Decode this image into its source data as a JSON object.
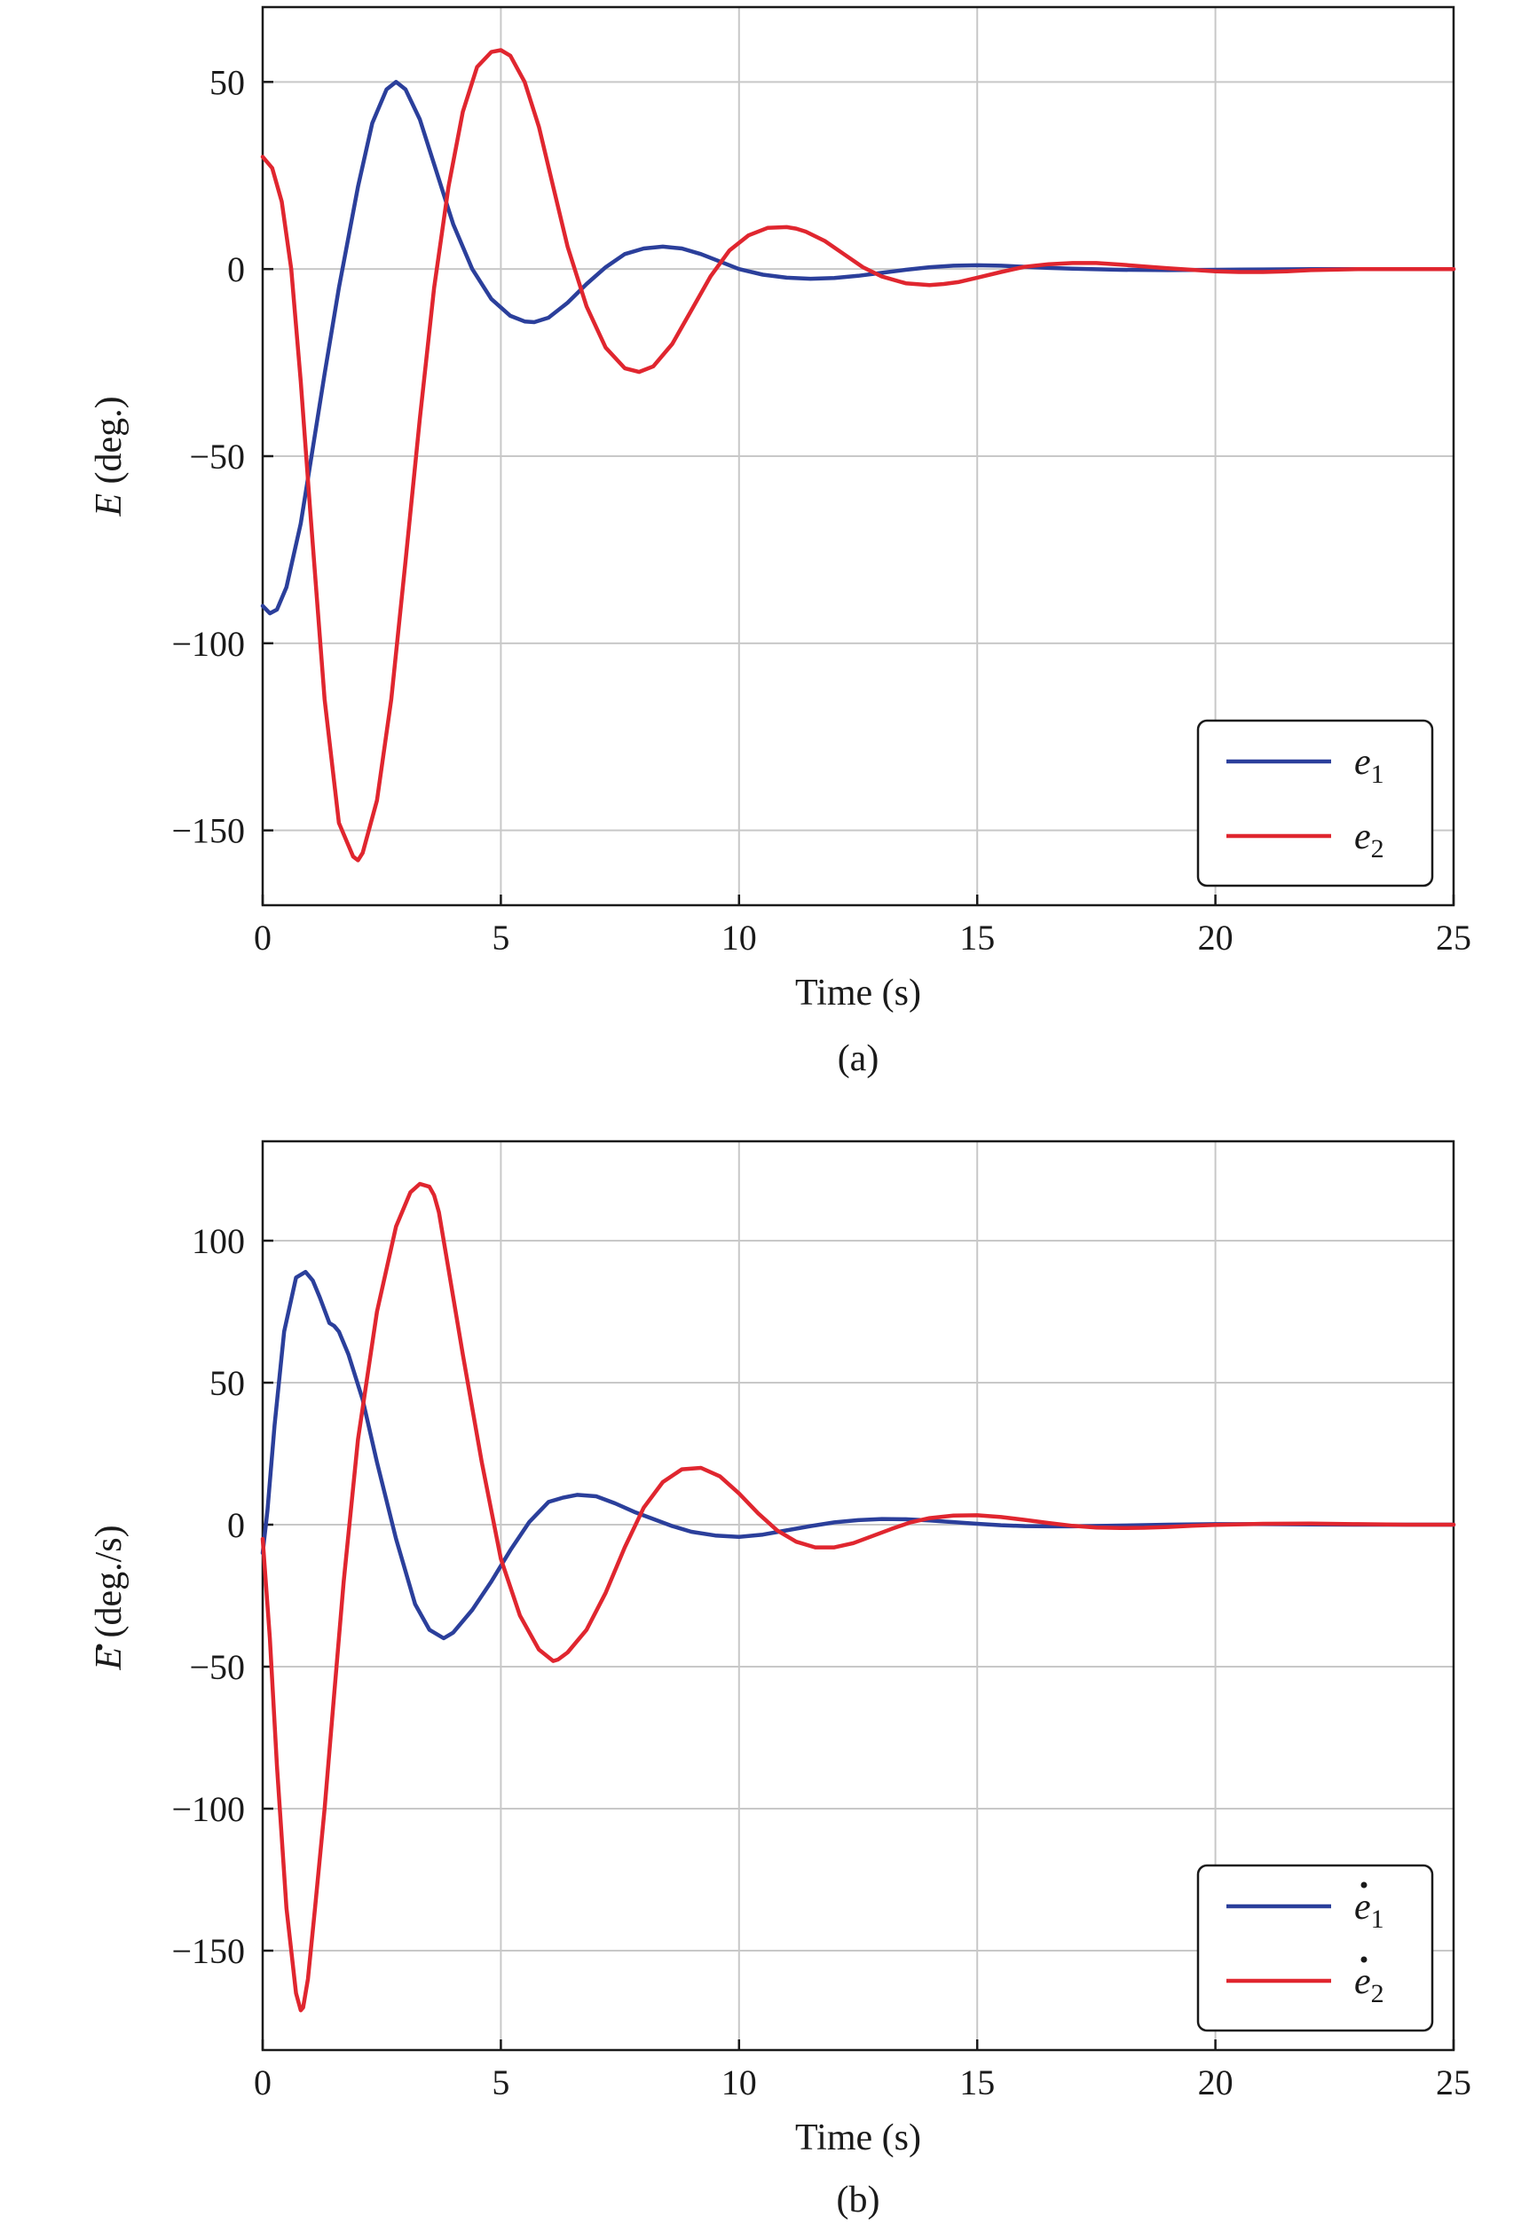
{
  "colors": {
    "blue": "#2b3f9b",
    "red": "#e0262f"
  },
  "chart_data": [
    {
      "id": "a",
      "type": "line",
      "caption": "(a)",
      "xlabel": "Time (s)",
      "ylabel_symbol": "E",
      "ylabel_rest": "(deg.)",
      "ylabel_dot": false,
      "xlim": [
        0,
        25
      ],
      "ylim": [
        -170,
        70
      ],
      "xticks": [
        0,
        5,
        10,
        15,
        20,
        25
      ],
      "xtick_labels": [
        "0",
        "5",
        "10",
        "15",
        "20",
        "25"
      ],
      "yticks": [
        50,
        0,
        -50,
        -100,
        -150
      ],
      "ytick_labels": [
        "50",
        "0",
        "−50",
        "−100",
        "−150"
      ],
      "grid": true,
      "legend_position": "lower-right",
      "series": [
        {
          "name": "e",
          "name_sub": "1",
          "name_dot": false,
          "color": "#2b3f9b",
          "x": [
            0,
            0.15,
            0.3,
            0.5,
            0.8,
            1.0,
            1.3,
            1.6,
            2.0,
            2.3,
            2.6,
            2.8,
            3.0,
            3.3,
            3.6,
            4.0,
            4.4,
            4.8,
            5.2,
            5.5,
            5.7,
            6.0,
            6.4,
            6.8,
            7.2,
            7.6,
            8.0,
            8.4,
            8.8,
            9.2,
            9.6,
            10.0,
            10.5,
            11.0,
            11.5,
            12.0,
            12.5,
            13.0,
            13.5,
            14.0,
            14.5,
            15.0,
            15.5,
            16.0,
            16.5,
            17.0,
            18.0,
            19.0,
            20.0,
            21.0,
            22.0,
            23.0,
            24.0,
            25.0
          ],
          "y": [
            -90,
            -92,
            -91,
            -85,
            -68,
            -52,
            -28,
            -5,
            22,
            39,
            48,
            50,
            48,
            40,
            28,
            12,
            0,
            -8,
            -12.5,
            -14,
            -14.2,
            -13,
            -9,
            -4,
            0.5,
            4,
            5.5,
            6,
            5.5,
            4,
            2,
            0,
            -1.5,
            -2.3,
            -2.6,
            -2.4,
            -1.8,
            -1,
            -0.2,
            0.5,
            0.9,
            1,
            0.9,
            0.6,
            0.3,
            0.1,
            -0.2,
            -0.3,
            -0.2,
            -0.1,
            0,
            0,
            0,
            0
          ]
        },
        {
          "name": "e",
          "name_sub": "2",
          "name_dot": false,
          "color": "#e0262f",
          "x": [
            0,
            0.2,
            0.4,
            0.6,
            0.8,
            1.0,
            1.3,
            1.6,
            1.9,
            2.0,
            2.1,
            2.4,
            2.7,
            3.0,
            3.3,
            3.6,
            3.9,
            4.2,
            4.5,
            4.8,
            5.0,
            5.2,
            5.5,
            5.8,
            6.1,
            6.4,
            6.8,
            7.2,
            7.6,
            7.9,
            8.2,
            8.6,
            9.0,
            9.4,
            9.8,
            10.2,
            10.6,
            11.0,
            11.2,
            11.4,
            11.8,
            12.2,
            12.6,
            13.0,
            13.5,
            14.0,
            14.3,
            14.6,
            15.0,
            15.5,
            16.0,
            16.5,
            17.0,
            17.5,
            18.0,
            18.5,
            19.0,
            19.5,
            20.0,
            20.5,
            21.0,
            21.5,
            22.0,
            23.0,
            24.0,
            25.0
          ],
          "y": [
            30,
            27,
            18,
            0,
            -30,
            -65,
            -115,
            -148,
            -157,
            -158,
            -156,
            -142,
            -115,
            -78,
            -40,
            -5,
            22,
            42,
            54,
            58,
            58.5,
            57,
            50,
            38,
            22,
            6,
            -10,
            -21,
            -26.5,
            -27.5,
            -26,
            -20,
            -11,
            -2,
            5,
            9,
            11,
            11.2,
            10.8,
            10,
            7.5,
            4,
            0.5,
            -2,
            -3.8,
            -4.3,
            -4,
            -3.5,
            -2.3,
            -0.8,
            0.6,
            1.3,
            1.6,
            1.6,
            1.2,
            0.7,
            0.2,
            -0.2,
            -0.6,
            -0.8,
            -0.8,
            -0.6,
            -0.3,
            0,
            0,
            0
          ]
        }
      ]
    },
    {
      "id": "b",
      "type": "line",
      "caption": "(b)",
      "xlabel": "Time (s)",
      "ylabel_symbol": "E",
      "ylabel_rest": "(deg./s)",
      "ylabel_dot": true,
      "xlim": [
        0,
        25
      ],
      "ylim": [
        -185,
        135
      ],
      "xticks": [
        0,
        5,
        10,
        15,
        20,
        25
      ],
      "xtick_labels": [
        "0",
        "5",
        "10",
        "15",
        "20",
        "25"
      ],
      "yticks": [
        100,
        50,
        0,
        -50,
        -100,
        -150
      ],
      "ytick_labels": [
        "100",
        "50",
        "0",
        "−50",
        "−100",
        "−150"
      ],
      "grid": true,
      "legend_position": "lower-right",
      "series": [
        {
          "name": "e",
          "name_sub": "1",
          "name_dot": true,
          "color": "#2b3f9b",
          "x": [
            0,
            0.1,
            0.25,
            0.45,
            0.7,
            0.9,
            1.05,
            1.2,
            1.4,
            1.5,
            1.6,
            1.8,
            2.1,
            2.4,
            2.8,
            3.2,
            3.5,
            3.8,
            4.0,
            4.4,
            4.8,
            5.2,
            5.6,
            6.0,
            6.3,
            6.6,
            7.0,
            7.4,
            7.8,
            8.2,
            8.6,
            9.0,
            9.5,
            10.0,
            10.5,
            11.0,
            11.5,
            12.0,
            12.5,
            13.0,
            13.5,
            14.0,
            14.5,
            15.0,
            15.5,
            16.0,
            16.5,
            17.0,
            18.0,
            19.0,
            20.0,
            21.0,
            22.0,
            23.0,
            24.0,
            25.0
          ],
          "y": [
            -10,
            5,
            35,
            68,
            87,
            89,
            86,
            80,
            71,
            70,
            68,
            60,
            44,
            22,
            -5,
            -28,
            -37,
            -40,
            -38,
            -30,
            -20,
            -9,
            1,
            8,
            9.5,
            10.5,
            10,
            7.5,
            4.5,
            2,
            -0.5,
            -2.5,
            -3.8,
            -4.3,
            -3.5,
            -2,
            -0.5,
            0.8,
            1.6,
            2,
            1.9,
            1.5,
            0.9,
            0.3,
            -0.2,
            -0.5,
            -0.6,
            -0.6,
            -0.3,
            0,
            0.2,
            0.2,
            0.1,
            0,
            0,
            0
          ]
        },
        {
          "name": "e",
          "name_sub": "2",
          "name_dot": true,
          "color": "#e0262f",
          "x": [
            0,
            0.15,
            0.3,
            0.5,
            0.7,
            0.8,
            0.85,
            0.95,
            1.1,
            1.3,
            1.5,
            1.7,
            2.0,
            2.4,
            2.8,
            3.1,
            3.3,
            3.5,
            3.6,
            3.7,
            3.9,
            4.2,
            4.6,
            5.0,
            5.4,
            5.8,
            6.1,
            6.2,
            6.4,
            6.8,
            7.2,
            7.6,
            8.0,
            8.4,
            8.8,
            9.2,
            9.6,
            10.0,
            10.4,
            10.8,
            11.2,
            11.6,
            12.0,
            12.4,
            12.8,
            13.2,
            13.6,
            14.0,
            14.5,
            15.0,
            15.5,
            16.0,
            16.5,
            17.0,
            17.5,
            18.0,
            18.5,
            19.0,
            19.5,
            20.0,
            21.0,
            22.0,
            23.0,
            24.0,
            25.0
          ],
          "y": [
            -5,
            -40,
            -85,
            -135,
            -165,
            -171,
            -170,
            -160,
            -135,
            -100,
            -60,
            -20,
            30,
            75,
            105,
            117,
            120,
            119,
            116,
            110,
            90,
            60,
            22,
            -12,
            -32,
            -44,
            -48,
            -47.5,
            -45,
            -37,
            -24,
            -8,
            6,
            15,
            19.5,
            20,
            17,
            11,
            4,
            -2,
            -6,
            -8,
            -8,
            -6.5,
            -4,
            -1.5,
            0.8,
            2.3,
            3.2,
            3.3,
            2.7,
            1.7,
            0.6,
            -0.4,
            -1,
            -1.2,
            -1.1,
            -0.8,
            -0.4,
            -0.1,
            0.3,
            0.4,
            0.2,
            0,
            0
          ]
        }
      ]
    }
  ]
}
